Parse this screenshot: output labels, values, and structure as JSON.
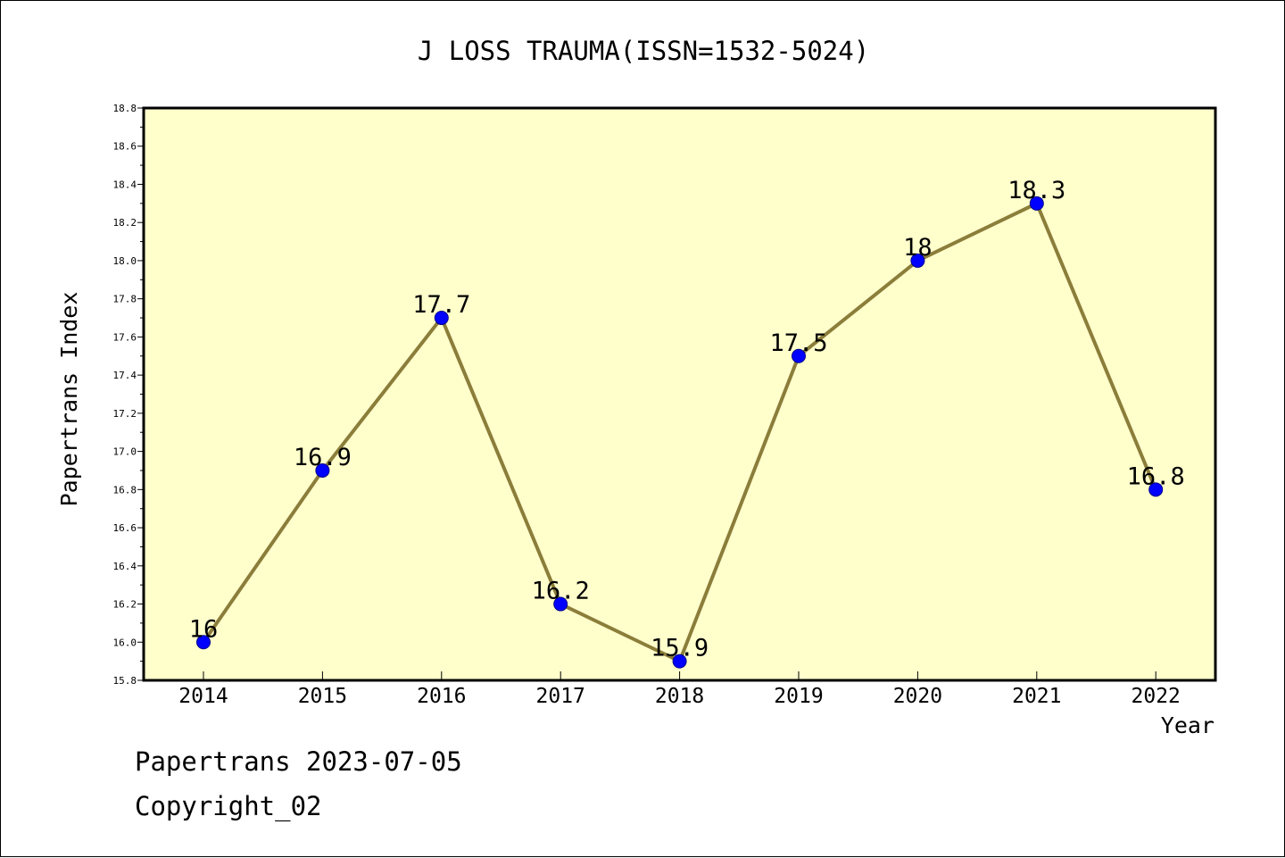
{
  "chart_data": {
    "type": "line",
    "title": "J LOSS TRAUMA(ISSN=1532-5024)",
    "xlabel": "Year",
    "ylabel": "Papertrans Index",
    "categories": [
      "2014",
      "2015",
      "2016",
      "2017",
      "2018",
      "2019",
      "2020",
      "2021",
      "2022"
    ],
    "series": [
      {
        "values": [
          16,
          16.9,
          17.7,
          16.2,
          15.9,
          17.5,
          18,
          18.3,
          16.8
        ],
        "labels": [
          "16",
          "16.9",
          "17.7",
          "16.2",
          "15.9",
          "17.5",
          "18",
          "18.3",
          "16.8"
        ]
      }
    ],
    "ylim": [
      15.8,
      18.8
    ],
    "yticks": [
      "15.8",
      "16.0",
      "16.2",
      "16.4",
      "16.6",
      "16.8",
      "17.0",
      "17.2",
      "17.4",
      "17.6",
      "17.8",
      "18.0",
      "18.2",
      "18.4",
      "18.6",
      "18.8"
    ],
    "grid": false,
    "colors": {
      "plot_background": "#ffffcc",
      "line": "#8b7d3a",
      "marker": "#0000ff"
    }
  },
  "footer": {
    "line1": "Papertrans 2023-07-05",
    "line2": "Copyright_02"
  }
}
